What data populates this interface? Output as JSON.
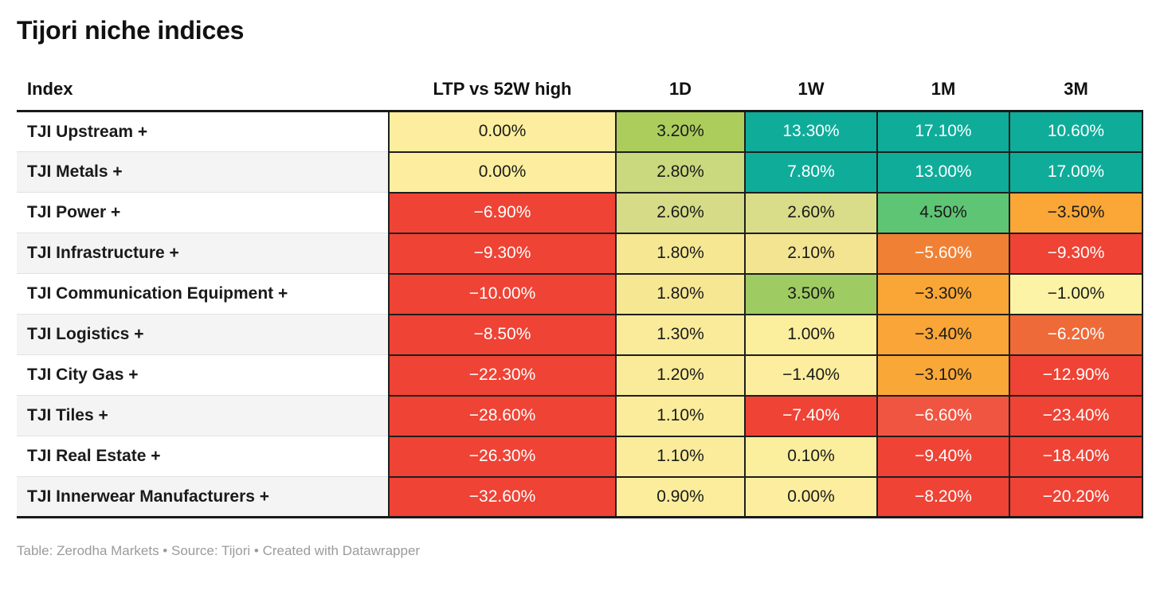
{
  "title": "Tijori niche indices",
  "footer": "Table: Zerodha Markets • Source: Tijori • Created with Datawrapper",
  "colors": {
    "strong_positive_teal": "#0fac9a",
    "positive_green": "#5ec574",
    "mild_positive_yellow_green": "#accd5c",
    "neutral_pale_yellow": "#fcee9e",
    "mild_negative_orange": "#f9a637",
    "negative_orange_red": "#ee6a39",
    "strong_negative_red": "#ee4335",
    "dark_text": "#1a1a1a",
    "light_text": "#ffffff",
    "row_alt_background": "#f4f4f4",
    "rule_black": "#191919",
    "attribution_gray": "#9b9b9b"
  },
  "chart_data": {
    "type": "table",
    "title": "Tijori niche indices",
    "columns": [
      "Index",
      "LTP vs 52W high",
      "1D",
      "1W",
      "1M",
      "3M"
    ],
    "rows": [
      {
        "index": "TJI Upstream +",
        "cells": [
          {
            "value": "0.00%",
            "bg": "#fcee9e",
            "fg": "#1a1a1a"
          },
          {
            "value": "3.20%",
            "bg": "#accd5c",
            "fg": "#1a1a1a"
          },
          {
            "value": "13.30%",
            "bg": "#0fac9a",
            "fg": "#ffffff"
          },
          {
            "value": "17.10%",
            "bg": "#0fac9a",
            "fg": "#ffffff"
          },
          {
            "value": "10.60%",
            "bg": "#0fac9a",
            "fg": "#ffffff"
          }
        ]
      },
      {
        "index": "TJI Metals +",
        "cells": [
          {
            "value": "0.00%",
            "bg": "#fcee9e",
            "fg": "#1a1a1a"
          },
          {
            "value": "2.80%",
            "bg": "#cad87e",
            "fg": "#1a1a1a"
          },
          {
            "value": "7.80%",
            "bg": "#0fac9a",
            "fg": "#ffffff"
          },
          {
            "value": "13.00%",
            "bg": "#0fac9a",
            "fg": "#ffffff"
          },
          {
            "value": "17.00%",
            "bg": "#0fac9a",
            "fg": "#ffffff"
          }
        ]
      },
      {
        "index": "TJI Power +",
        "cells": [
          {
            "value": "−6.90%",
            "bg": "#ee4335",
            "fg": "#ffffff"
          },
          {
            "value": "2.60%",
            "bg": "#d6db87",
            "fg": "#1a1a1a"
          },
          {
            "value": "2.60%",
            "bg": "#d9dd89",
            "fg": "#1a1a1a"
          },
          {
            "value": "4.50%",
            "bg": "#5ec574",
            "fg": "#1a1a1a"
          },
          {
            "value": "−3.50%",
            "bg": "#faa737",
            "fg": "#1a1a1a"
          }
        ]
      },
      {
        "index": "TJI Infrastructure +",
        "cells": [
          {
            "value": "−9.30%",
            "bg": "#ee4335",
            "fg": "#ffffff"
          },
          {
            "value": "1.80%",
            "bg": "#f6e793",
            "fg": "#1a1a1a"
          },
          {
            "value": "2.10%",
            "bg": "#f3e492",
            "fg": "#1a1a1a"
          },
          {
            "value": "−5.60%",
            "bg": "#f08134",
            "fg": "#ffffff"
          },
          {
            "value": "−9.30%",
            "bg": "#ee4335",
            "fg": "#ffffff"
          }
        ]
      },
      {
        "index": "TJI Communication Equipment +",
        "cells": [
          {
            "value": "−10.00%",
            "bg": "#ee4335",
            "fg": "#ffffff"
          },
          {
            "value": "1.80%",
            "bg": "#f6e793",
            "fg": "#1a1a1a"
          },
          {
            "value": "3.50%",
            "bg": "#9fcb63",
            "fg": "#1a1a1a"
          },
          {
            "value": "−3.30%",
            "bg": "#f9a637",
            "fg": "#1a1a1a"
          },
          {
            "value": "−1.00%",
            "bg": "#fcf3a6",
            "fg": "#1a1a1a"
          }
        ]
      },
      {
        "index": "TJI Logistics +",
        "cells": [
          {
            "value": "−8.50%",
            "bg": "#ee4335",
            "fg": "#ffffff"
          },
          {
            "value": "1.30%",
            "bg": "#f9eb99",
            "fg": "#1a1a1a"
          },
          {
            "value": "1.00%",
            "bg": "#fbee9d",
            "fg": "#1a1a1a"
          },
          {
            "value": "−3.40%",
            "bg": "#f9a537",
            "fg": "#1a1a1a"
          },
          {
            "value": "−6.20%",
            "bg": "#ee6a39",
            "fg": "#ffffff"
          }
        ]
      },
      {
        "index": "TJI City Gas +",
        "cells": [
          {
            "value": "−22.30%",
            "bg": "#ee4335",
            "fg": "#ffffff"
          },
          {
            "value": "1.20%",
            "bg": "#f9eb99",
            "fg": "#1a1a1a"
          },
          {
            "value": "−1.40%",
            "bg": "#fcee9e",
            "fg": "#1a1a1a"
          },
          {
            "value": "−3.10%",
            "bg": "#f9a838",
            "fg": "#1a1a1a"
          },
          {
            "value": "−12.90%",
            "bg": "#ee4335",
            "fg": "#ffffff"
          }
        ]
      },
      {
        "index": "TJI Tiles +",
        "cells": [
          {
            "value": "−28.60%",
            "bg": "#ee4335",
            "fg": "#ffffff"
          },
          {
            "value": "1.10%",
            "bg": "#faec9b",
            "fg": "#1a1a1a"
          },
          {
            "value": "−7.40%",
            "bg": "#ee4335",
            "fg": "#ffffff"
          },
          {
            "value": "−6.60%",
            "bg": "#f05541",
            "fg": "#ffffff"
          },
          {
            "value": "−23.40%",
            "bg": "#ee4335",
            "fg": "#ffffff"
          }
        ]
      },
      {
        "index": "TJI Real Estate +",
        "cells": [
          {
            "value": "−26.30%",
            "bg": "#ee4335",
            "fg": "#ffffff"
          },
          {
            "value": "1.10%",
            "bg": "#faec9b",
            "fg": "#1a1a1a"
          },
          {
            "value": "0.10%",
            "bg": "#fbee9d",
            "fg": "#1a1a1a"
          },
          {
            "value": "−9.40%",
            "bg": "#ee4335",
            "fg": "#ffffff"
          },
          {
            "value": "−18.40%",
            "bg": "#ee4335",
            "fg": "#ffffff"
          }
        ]
      },
      {
        "index": "TJI Innerwear Manufacturers +",
        "cells": [
          {
            "value": "−32.60%",
            "bg": "#ee4335",
            "fg": "#ffffff"
          },
          {
            "value": "0.90%",
            "bg": "#fbed9c",
            "fg": "#1a1a1a"
          },
          {
            "value": "0.00%",
            "bg": "#fcee9e",
            "fg": "#1a1a1a"
          },
          {
            "value": "−8.20%",
            "bg": "#ee4335",
            "fg": "#ffffff"
          },
          {
            "value": "−20.20%",
            "bg": "#ee4335",
            "fg": "#ffffff"
          }
        ]
      }
    ]
  }
}
